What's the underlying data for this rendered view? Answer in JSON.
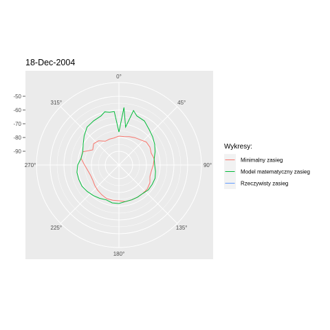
{
  "chart_data": {
    "type": "polar-line",
    "title": "18-Dec-2004",
    "theta_ticks": [
      "0°",
      "45°",
      "90°",
      "135°",
      "180°",
      "225°",
      "270°",
      "315°"
    ],
    "r_ticks": [
      "-50",
      "-60",
      "-70",
      "-80",
      "-90"
    ],
    "r_values": [
      -50,
      -60,
      -70,
      -80,
      -90
    ],
    "r_range": [
      -100,
      -40
    ],
    "grid": true,
    "legend": {
      "title": "Wykresy:",
      "position": "right",
      "entries": [
        {
          "label": "Minimalny zasieg",
          "color": "#F8766D"
        },
        {
          "label": "Model matematyczny zasieg",
          "color": "#00BA38"
        },
        {
          "label": "Rzeczywisty zasieg",
          "color": "#619CFF"
        }
      ]
    },
    "series": [
      {
        "name": "Minimalny zasieg",
        "color": "#F8766D",
        "angles": [
          0,
          10,
          20,
          30,
          40,
          50,
          60,
          70,
          80,
          90,
          100,
          110,
          120,
          130,
          140,
          150,
          160,
          170,
          180,
          190,
          200,
          210,
          220,
          230,
          240,
          250,
          260,
          270,
          280,
          290,
          300,
          310,
          320,
          330,
          340,
          350
        ],
        "values": [
          -79,
          -79,
          -78,
          -77,
          -76,
          -74,
          -74,
          -75,
          -74,
          -75,
          -76,
          -76,
          -74,
          -73,
          -73,
          -73,
          -73,
          -73,
          -74,
          -74,
          -74,
          -75,
          -76,
          -77,
          -78,
          -78,
          -77,
          -75,
          -72,
          -72,
          -78,
          -76,
          -77,
          -80,
          -80,
          -80
        ]
      },
      {
        "name": "Model matematyczny zasieg",
        "color": "#00BA38",
        "angles": [
          0,
          5,
          10,
          15,
          20,
          30,
          40,
          50,
          60,
          70,
          80,
          90,
          100,
          110,
          120,
          130,
          140,
          150,
          160,
          170,
          180,
          190,
          200,
          210,
          220,
          230,
          240,
          250,
          260,
          270,
          280,
          290,
          300,
          310,
          320,
          330,
          340,
          345,
          350,
          355
        ],
        "values": [
          -76,
          -58,
          -72,
          -59,
          -62,
          -63,
          -66,
          -68,
          -70,
          -72,
          -74,
          -74,
          -73,
          -72,
          -72,
          -72,
          -73,
          -73,
          -73,
          -73,
          -72,
          -72,
          -73,
          -72,
          -71,
          -70,
          -69,
          -69,
          -69,
          -70,
          -72,
          -72,
          -70,
          -67,
          -64,
          -63,
          -62,
          -60,
          -61,
          -61
        ]
      },
      {
        "name": "Rzeczywisty zasieg",
        "color": "#619CFF",
        "angles": [],
        "values": []
      }
    ]
  }
}
